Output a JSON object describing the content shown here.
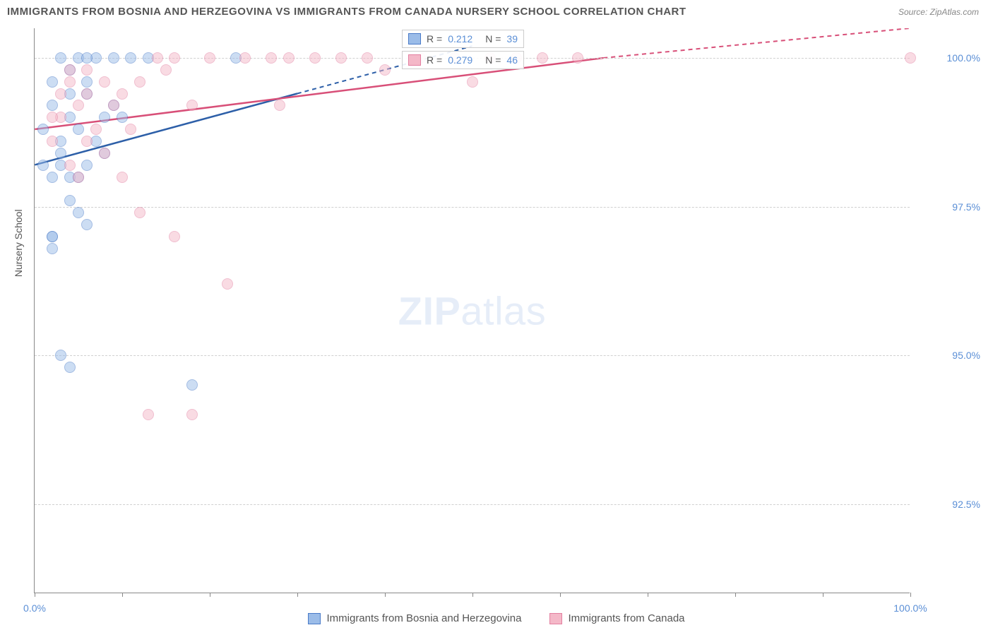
{
  "title": "IMMIGRANTS FROM BOSNIA AND HERZEGOVINA VS IMMIGRANTS FROM CANADA NURSERY SCHOOL CORRELATION CHART",
  "source": "Source: ZipAtlas.com",
  "y_axis_label": "Nursery School",
  "watermark_zip": "ZIP",
  "watermark_atlas": "atlas",
  "chart": {
    "type": "scatter",
    "xlim": [
      0,
      100
    ],
    "ylim": [
      91,
      100.5
    ],
    "x_ticks": [
      0,
      10,
      20,
      30,
      40,
      50,
      60,
      70,
      80,
      90,
      100
    ],
    "x_tick_labels": {
      "0": "0.0%",
      "100": "100.0%"
    },
    "y_ticks": [
      92.5,
      95.0,
      97.5,
      100.0
    ],
    "y_tick_labels": [
      "92.5%",
      "95.0%",
      "97.5%",
      "100.0%"
    ],
    "background_color": "#ffffff",
    "grid_color": "#d0d0d0",
    "axis_color": "#888888",
    "tick_label_color": "#5b8fd6",
    "marker_radius": 8,
    "marker_opacity": 0.5
  },
  "series": [
    {
      "name": "Immigrants from Bosnia and Herzegovina",
      "fill_color": "#9bbce8",
      "stroke_color": "#4a7bc8",
      "line_color": "#2d5fa8",
      "R": "0.212",
      "N": "39",
      "trend": {
        "x1": 0,
        "y1": 98.2,
        "x2_solid": 30,
        "y2_solid": 99.4,
        "x2_dash": 50,
        "y2_dash": 100.2
      },
      "points": [
        [
          2,
          98.0
        ],
        [
          3,
          98.2
        ],
        [
          3,
          98.6
        ],
        [
          2,
          99.2
        ],
        [
          4,
          99.0
        ],
        [
          5,
          98.8
        ],
        [
          4,
          99.4
        ],
        [
          6,
          99.6
        ],
        [
          3,
          100.0
        ],
        [
          5,
          100.0
        ],
        [
          7,
          100.0
        ],
        [
          9,
          100.0
        ],
        [
          11,
          100.0
        ],
        [
          13,
          100.0
        ],
        [
          23,
          100.0
        ],
        [
          8,
          99.0
        ],
        [
          6,
          98.2
        ],
        [
          2,
          97.0
        ],
        [
          2,
          96.8
        ],
        [
          8,
          98.4
        ],
        [
          10,
          99.0
        ],
        [
          5,
          97.4
        ],
        [
          3,
          95.0
        ],
        [
          4,
          94.8
        ],
        [
          18,
          94.5
        ],
        [
          2,
          97.0
        ],
        [
          6,
          99.4
        ],
        [
          4,
          98.0
        ],
        [
          3,
          98.4
        ],
        [
          1,
          98.2
        ],
        [
          1,
          98.8
        ],
        [
          5,
          98.0
        ],
        [
          7,
          98.6
        ],
        [
          9,
          99.2
        ],
        [
          4,
          97.6
        ],
        [
          6,
          97.2
        ],
        [
          2,
          99.6
        ],
        [
          4,
          99.8
        ],
        [
          6,
          100.0
        ]
      ]
    },
    {
      "name": "Immigrants from Canada",
      "fill_color": "#f4b8c8",
      "stroke_color": "#e37fa0",
      "line_color": "#d84f78",
      "R": "0.279",
      "N": "46",
      "trend": {
        "x1": 0,
        "y1": 98.8,
        "x2_solid": 65,
        "y2_solid": 100.0,
        "x2_dash": 100,
        "y2_dash": 100.5
      },
      "points": [
        [
          4,
          98.2
        ],
        [
          2,
          98.6
        ],
        [
          3,
          99.0
        ],
        [
          5,
          99.2
        ],
        [
          6,
          99.4
        ],
        [
          8,
          99.6
        ],
        [
          7,
          98.8
        ],
        [
          10,
          99.4
        ],
        [
          12,
          99.6
        ],
        [
          15,
          99.8
        ],
        [
          18,
          99.2
        ],
        [
          14,
          100.0
        ],
        [
          16,
          100.0
        ],
        [
          20,
          100.0
        ],
        [
          24,
          100.0
        ],
        [
          27,
          100.0
        ],
        [
          29,
          100.0
        ],
        [
          32,
          100.0
        ],
        [
          35,
          100.0
        ],
        [
          38,
          100.0
        ],
        [
          40,
          99.8
        ],
        [
          44,
          100.0
        ],
        [
          48,
          100.0
        ],
        [
          52,
          100.0
        ],
        [
          55,
          100.0
        ],
        [
          58,
          100.0
        ],
        [
          62,
          100.0
        ],
        [
          100,
          100.0
        ],
        [
          12,
          97.4
        ],
        [
          16,
          97.0
        ],
        [
          22,
          96.2
        ],
        [
          13,
          94.0
        ],
        [
          18,
          94.0
        ],
        [
          5,
          98.0
        ],
        [
          4,
          99.6
        ],
        [
          6,
          99.8
        ],
        [
          9,
          99.2
        ],
        [
          11,
          98.8
        ],
        [
          3,
          99.4
        ],
        [
          28,
          99.2
        ],
        [
          8,
          98.4
        ],
        [
          10,
          98.0
        ],
        [
          6,
          98.6
        ],
        [
          2,
          99.0
        ],
        [
          4,
          99.8
        ],
        [
          50,
          99.6
        ]
      ]
    }
  ],
  "stats_labels": {
    "R": "R =",
    "N": "N ="
  },
  "legend": {
    "bosnia": "Immigrants from Bosnia and Herzegovina",
    "canada": "Immigrants from Canada"
  }
}
